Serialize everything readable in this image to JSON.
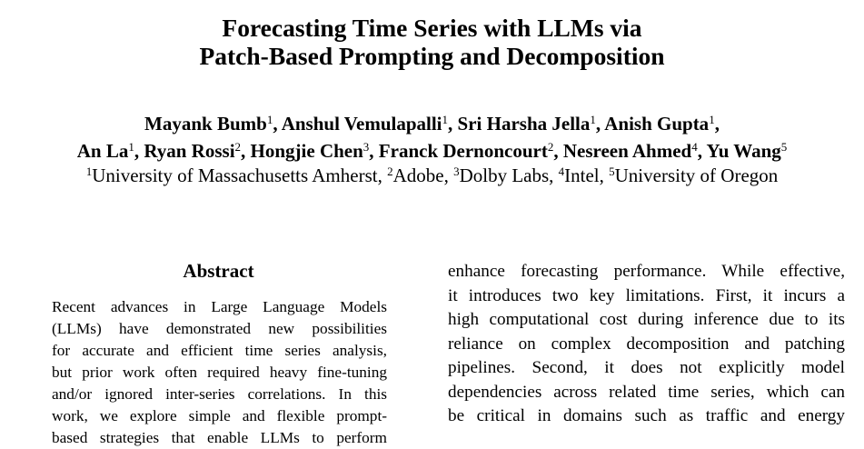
{
  "paper": {
    "title_lines": [
      "Forecasting Time Series with LLMs via",
      "Patch-Based Prompting and Decomposition"
    ],
    "authors_line1": [
      {
        "name": "Mayank Bumb",
        "aff": "1",
        "sep": ", "
      },
      {
        "name": "Anshul Vemulapalli",
        "aff": "1",
        "sep": ", "
      },
      {
        "name": "Sri Harsha Jella",
        "aff": "1",
        "sep": ", "
      },
      {
        "name": "Anish Gupta",
        "aff": "1",
        "sep": ","
      }
    ],
    "authors_line2": [
      {
        "name": "An La",
        "aff": "1",
        "sep": ", "
      },
      {
        "name": "Ryan Rossi",
        "aff": "2",
        "sep": ", "
      },
      {
        "name": "Hongjie Chen",
        "aff": "3",
        "sep": ", "
      },
      {
        "name": "Franck Dernoncourt",
        "aff": "2",
        "sep": ", "
      },
      {
        "name": "Nesreen Ahmed",
        "aff": "4",
        "sep": ", "
      },
      {
        "name": "Yu Wang",
        "aff": "5",
        "sep": ""
      }
    ],
    "affiliations": [
      {
        "num": "1",
        "name": "University of Massachusetts Amherst",
        "sep": ", "
      },
      {
        "num": "2",
        "name": "Adobe",
        "sep": ", "
      },
      {
        "num": "3",
        "name": "Dolby Labs",
        "sep": ", "
      },
      {
        "num": "4",
        "name": "Intel",
        "sep": ", "
      },
      {
        "num": "5",
        "name": "University of Oregon",
        "sep": ""
      }
    ],
    "abstract_heading": "Abstract",
    "abstract_lines": [
      "Recent advances in Large Language Models",
      "(LLMs) have demonstrated new possibilities",
      "for accurate and efficient time series analysis,",
      "but prior work often required heavy fine-tuning",
      "and/or ignored inter-series correlations. In this",
      "work, we explore simple and flexible prompt-",
      "based strategies that enable LLMs to perform"
    ],
    "right_lines": [
      "enhance forecasting performance. While effective,",
      "it introduces two key limitations. First, it incurs a",
      "high computational cost during inference due to its",
      "reliance on complex decomposition and patching",
      "pipelines.  Second, it does not explicitly model",
      "dependencies across related time series, which can",
      "be critical in domains such as traffic and energy"
    ]
  }
}
